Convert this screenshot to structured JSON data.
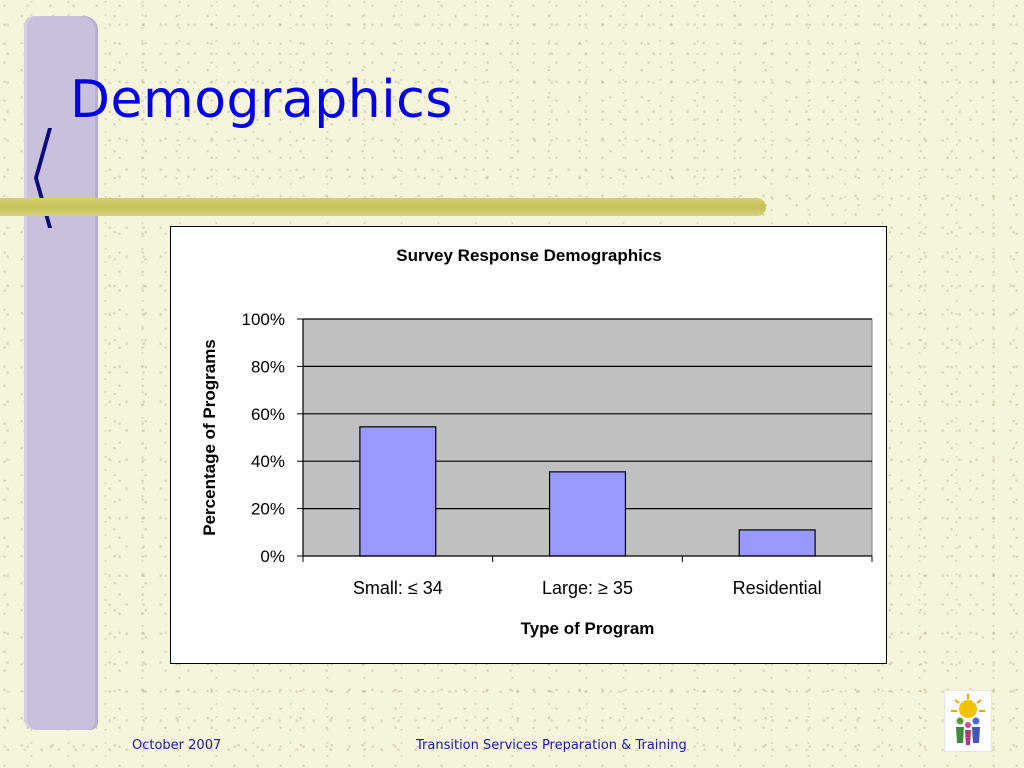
{
  "slide": {
    "title": "Demographics",
    "footer_date": "October 2007",
    "footer_text": "Transition Services Preparation & Training",
    "logo_icon": "people-celebration-logo-icon"
  },
  "colors": {
    "title": "#0000e8",
    "bar_fill": "#9999ff",
    "plot_background": "#c0c0c0",
    "accent_stripe": "#c5c154",
    "side_bar": "#c9c0dc"
  },
  "chart_data": {
    "type": "bar",
    "title": "Survey Response Demographics",
    "xlabel": "Type of Program",
    "ylabel": "Percentage of Programs",
    "categories": [
      "Small: ≤ 34",
      "Large: ≥ 35",
      "Residential"
    ],
    "values": [
      54.5,
      35.5,
      11
    ],
    "ylim": [
      0,
      100
    ],
    "yticks": [
      0,
      20,
      40,
      60,
      80,
      100
    ],
    "ytick_labels": [
      "0%",
      "20%",
      "40%",
      "60%",
      "80%",
      "100%"
    ],
    "grid": true,
    "legend": false
  }
}
